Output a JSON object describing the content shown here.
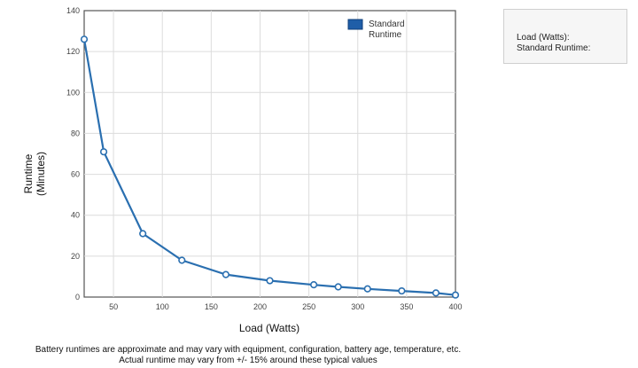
{
  "chart_data": {
    "type": "line",
    "xlabel": "Load (Watts)",
    "ylabel_lines": [
      "Runtime",
      "(Minutes)"
    ],
    "xlim": [
      20,
      400
    ],
    "ylim": [
      0,
      140
    ],
    "x_ticks": [
      50,
      100,
      150,
      200,
      250,
      300,
      350,
      400
    ],
    "y_ticks": [
      0,
      20,
      40,
      60,
      80,
      100,
      120,
      140
    ],
    "grid": true,
    "legend_position": "top-right",
    "series": [
      {
        "name_lines": [
          "Standard",
          "Runtime"
        ],
        "color": "#2a6fb0",
        "points": [
          {
            "x": 20,
            "y": 126
          },
          {
            "x": 40,
            "y": 71
          },
          {
            "x": 80,
            "y": 31
          },
          {
            "x": 120,
            "y": 18
          },
          {
            "x": 165,
            "y": 11
          },
          {
            "x": 210,
            "y": 8
          },
          {
            "x": 255,
            "y": 6
          },
          {
            "x": 280,
            "y": 5
          },
          {
            "x": 310,
            "y": 4
          },
          {
            "x": 345,
            "y": 3
          },
          {
            "x": 380,
            "y": 2
          },
          {
            "x": 400,
            "y": 1
          }
        ]
      }
    ]
  },
  "info_box": {
    "load_label": "Load (Watts):",
    "runtime_label": "Standard Runtime:"
  },
  "footnote": {
    "line1": "Battery runtimes are approximate and may vary with equipment, configuration, battery age, temperature, etc.",
    "line2": "Actual runtime may vary from +/- 15% around these typical values"
  }
}
